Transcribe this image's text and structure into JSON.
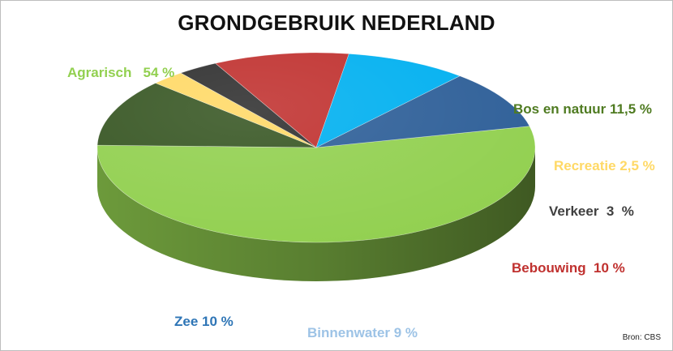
{
  "chart_data": {
    "type": "pie",
    "title": "GRONDGEBRUIK NEDERLAND",
    "slices": [
      {
        "name": "Agrarisch",
        "value": 54,
        "label": "Agrarisch   54 %",
        "color": "#92d050",
        "label_color": "#92d050"
      },
      {
        "name": "Bos en natuur",
        "value": 11.5,
        "label": "Bos en natuur 11,5 %",
        "color": "#375623",
        "label_color": "#4f7b21"
      },
      {
        "name": "Recreatie",
        "value": 2.5,
        "label": "Recreatie 2,5 %",
        "color": "#ffd966",
        "label_color": "#ffd966"
      },
      {
        "name": "Verkeer",
        "value": 3,
        "label": "Verkeer  3  %",
        "color": "#2f2f2f",
        "label_color": "#404040"
      },
      {
        "name": "Bebouwing",
        "value": 10,
        "label": "Bebouwing  10 %",
        "color": "#c0312f",
        "label_color": "#c0312f"
      },
      {
        "name": "Binnenwater",
        "value": 9,
        "label": "Binnenwater 9 %",
        "color": "#00b0f0",
        "label_color": "#9dc3e6"
      },
      {
        "name": "Zee",
        "value": 10,
        "label": "Zee 10 %",
        "color": "#2e5f98",
        "label_color": "#2e75b6"
      }
    ],
    "source": "Bron: CBS",
    "legend": "none"
  }
}
